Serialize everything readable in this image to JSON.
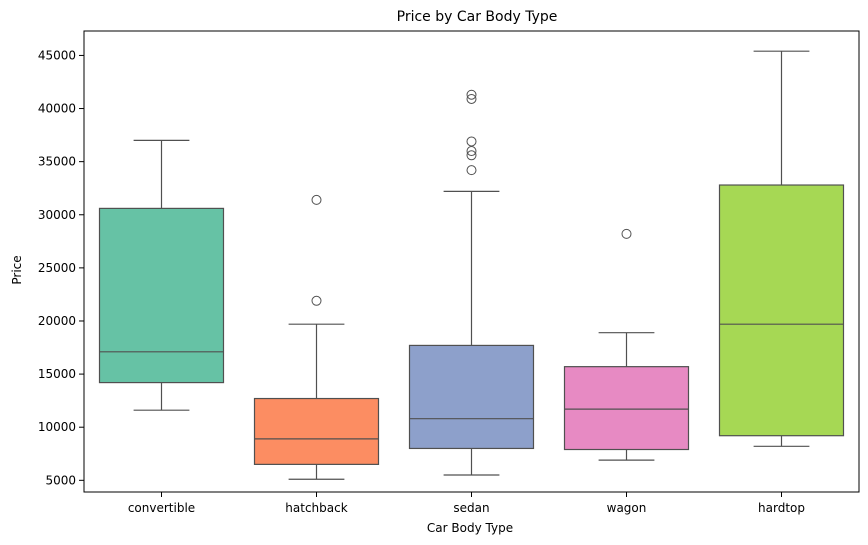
{
  "chart_data": {
    "type": "box",
    "title": "Price by Car Body Type",
    "xlabel": "Car Body Type",
    "ylabel": "Price",
    "ylim": [
      3900,
      47300
    ],
    "yticks": [
      5000,
      10000,
      15000,
      20000,
      25000,
      30000,
      35000,
      40000,
      45000
    ],
    "ytick_labels": [
      "5000",
      "10000",
      "15000",
      "20000",
      "25000",
      "30000",
      "35000",
      "40000",
      "45000"
    ],
    "grid": false,
    "categories": [
      "convertible",
      "hatchback",
      "sedan",
      "wagon",
      "hardtop"
    ],
    "boxes": [
      {
        "category": "convertible",
        "color": "#66c2a5",
        "whisker_low": 11600,
        "q1": 14200,
        "median": 17100,
        "q3": 30600,
        "whisker_high": 37000,
        "outliers": []
      },
      {
        "category": "hatchback",
        "color": "#fc8d62",
        "whisker_low": 5100,
        "q1": 6500,
        "median": 8900,
        "q3": 12700,
        "whisker_high": 19700,
        "outliers": [
          21900,
          31400
        ]
      },
      {
        "category": "sedan",
        "color": "#8da0cb",
        "whisker_low": 5500,
        "q1": 8000,
        "median": 10800,
        "q3": 17700,
        "whisker_high": 32200,
        "outliers": [
          34200,
          35600,
          36000,
          36900,
          40900,
          41300
        ]
      },
      {
        "category": "wagon",
        "color": "#e78ac3",
        "whisker_low": 6900,
        "q1": 7900,
        "median": 11700,
        "q3": 15700,
        "whisker_high": 18900,
        "outliers": [
          28200
        ]
      },
      {
        "category": "hardtop",
        "color": "#a6d854",
        "whisker_low": 8200,
        "q1": 9200,
        "median": 19700,
        "q3": 32800,
        "whisker_high": 45400,
        "outliers": []
      }
    ]
  }
}
